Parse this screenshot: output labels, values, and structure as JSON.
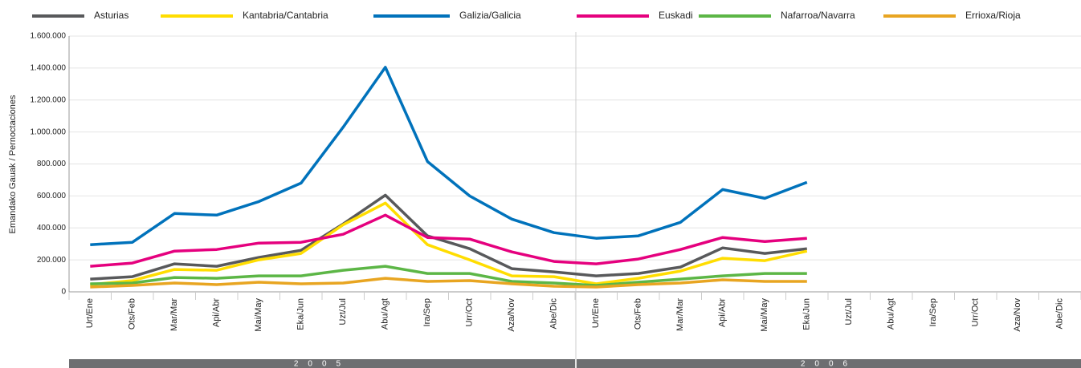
{
  "chart_data": {
    "type": "line",
    "y_label": "Emandako Gauak / Pernoctaciones",
    "categories": [
      "Urt/Ene",
      "Ots/Feb",
      "Mar/Mar",
      "Api/Abr",
      "Mai/May",
      "Eka/Jun",
      "Uzt/Jul",
      "Abu/Agt",
      "Ira/Sep",
      "Urr/Oct",
      "Aza/Nov",
      "Abe/Dic",
      "Urt/Ene",
      "Ots/Feb",
      "Mar/Mar",
      "Api/Abr",
      "Mai/May",
      "Eka/Jun",
      "Uzt/Jul",
      "Abu/Agt",
      "Ira/Sep",
      "Urr/Oct",
      "Aza/Nov",
      "Abe/Dic"
    ],
    "years": [
      "2005",
      "2006"
    ],
    "series": [
      {
        "name": "Asturias",
        "color": "#58595b",
        "values": [
          80000,
          95000,
          175000,
          160000,
          215000,
          260000,
          425000,
          605000,
          350000,
          270000,
          145000,
          125000,
          100000,
          115000,
          155000,
          275000,
          240000,
          270000,
          null,
          null,
          null,
          null,
          null,
          null
        ]
      },
      {
        "name": "Kantabria/Cantabria",
        "color": "#ffdd00",
        "values": [
          45000,
          70000,
          140000,
          135000,
          200000,
          240000,
          420000,
          555000,
          295000,
          200000,
          100000,
          95000,
          50000,
          85000,
          130000,
          210000,
          195000,
          255000,
          null,
          null,
          null,
          null,
          null,
          null
        ]
      },
      {
        "name": "Galizia/Galicia",
        "color": "#0072bb",
        "values": [
          295000,
          310000,
          490000,
          480000,
          565000,
          680000,
          1030000,
          1405000,
          815000,
          600000,
          455000,
          370000,
          335000,
          350000,
          435000,
          640000,
          585000,
          685000,
          null,
          null,
          null,
          null,
          null,
          null
        ]
      },
      {
        "name": "Euskadi",
        "color": "#e5007e",
        "values": [
          160000,
          180000,
          255000,
          265000,
          305000,
          310000,
          360000,
          480000,
          340000,
          330000,
          250000,
          190000,
          175000,
          205000,
          265000,
          340000,
          315000,
          335000,
          null,
          null,
          null,
          null,
          null,
          null
        ]
      },
      {
        "name": "Nafarroa/Navarra",
        "color": "#5cb646",
        "values": [
          50000,
          55000,
          90000,
          85000,
          100000,
          100000,
          135000,
          160000,
          115000,
          115000,
          65000,
          55000,
          40000,
          60000,
          80000,
          100000,
          115000,
          115000,
          null,
          null,
          null,
          null,
          null,
          null
        ]
      },
      {
        "name": "Errioxa/Rioja",
        "color": "#e8a521",
        "values": [
          30000,
          40000,
          55000,
          45000,
          60000,
          50000,
          55000,
          85000,
          65000,
          70000,
          50000,
          35000,
          30000,
          45000,
          55000,
          75000,
          65000,
          65000,
          null,
          null,
          null,
          null,
          null,
          null
        ]
      }
    ],
    "ylim": [
      0,
      1600000
    ],
    "yticks": [
      {
        "value": 0,
        "label": "0"
      },
      {
        "value": 200000,
        "label": "200.000"
      },
      {
        "value": 400000,
        "label": "400.000"
      },
      {
        "value": 600000,
        "label": "600.000"
      },
      {
        "value": 800000,
        "label": "800.000"
      },
      {
        "value": 1000000,
        "label": "1.000.000"
      },
      {
        "value": 1200000,
        "label": "1.200.000"
      },
      {
        "value": 1400000,
        "label": "1.400.000"
      },
      {
        "value": 1600000,
        "label": "1.600.000"
      }
    ],
    "grid": true
  }
}
